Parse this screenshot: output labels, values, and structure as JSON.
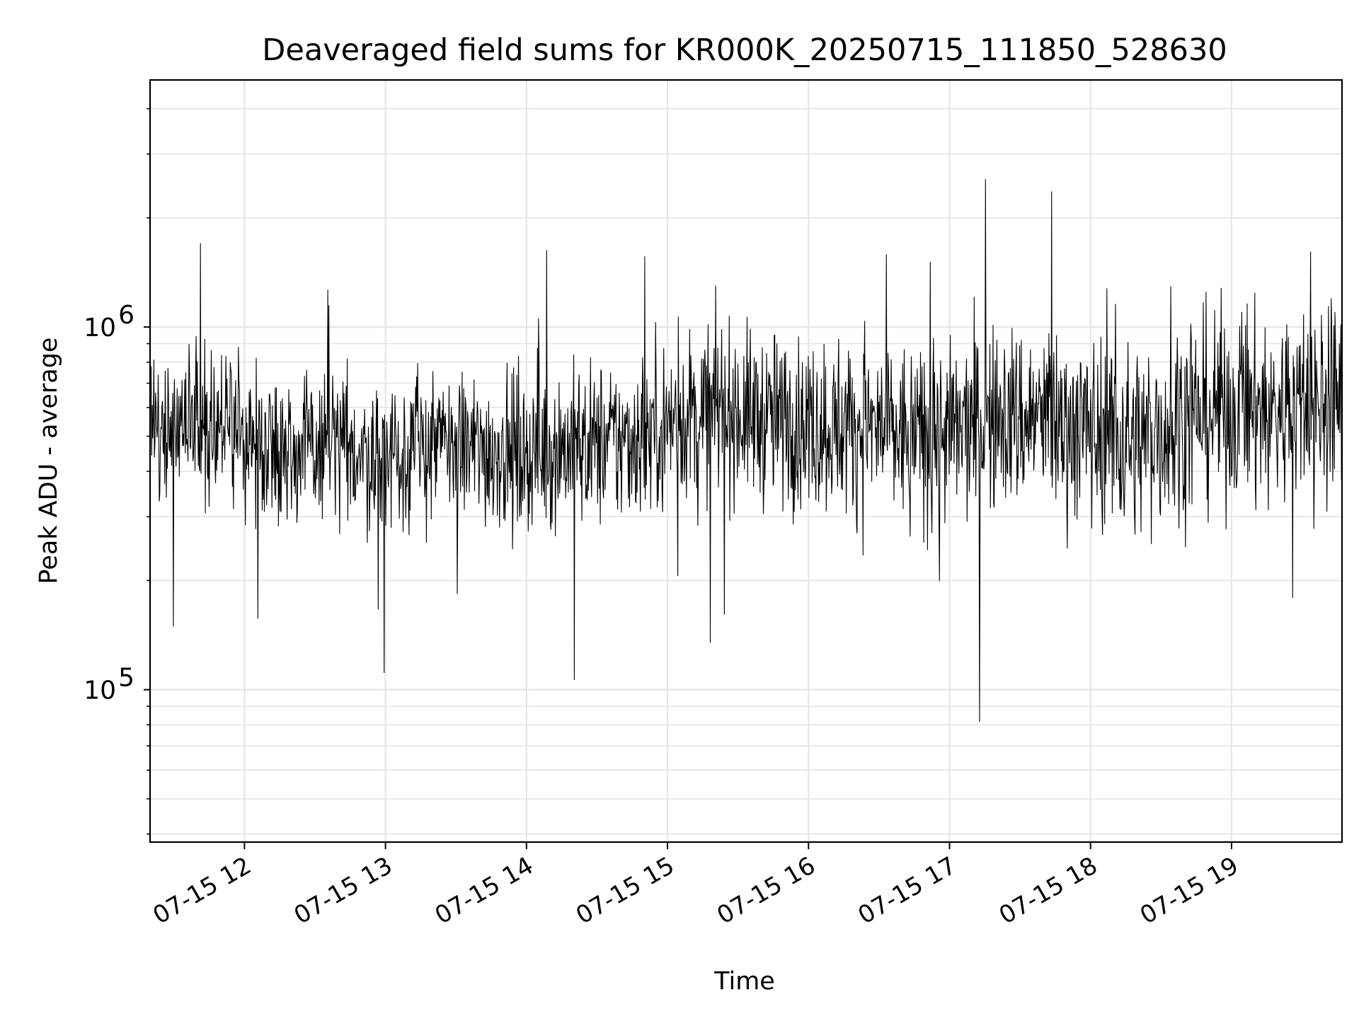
{
  "chart_data": {
    "type": "line",
    "title": "Deaveraged field sums for KR000K_20250715_111850_528630",
    "xlabel": "Time",
    "ylabel": "Peak ADU - average",
    "yscale": "log",
    "ylim": [
      38000,
      4800000
    ],
    "xlim": [
      "07-15 11:19:50",
      "07-15 19:47:00"
    ],
    "grid": true,
    "line_color": "#000000",
    "x_ticks": [
      {
        "t": "07-15 12:00",
        "label": "07-15 12"
      },
      {
        "t": "07-15 13:00",
        "label": "07-15 13"
      },
      {
        "t": "07-15 14:00",
        "label": "07-15 14"
      },
      {
        "t": "07-15 15:00",
        "label": "07-15 15"
      },
      {
        "t": "07-15 16:00",
        "label": "07-15 16"
      },
      {
        "t": "07-15 17:00",
        "label": "07-15 17"
      },
      {
        "t": "07-15 18:00",
        "label": "07-15 18"
      },
      {
        "t": "07-15 19:00",
        "label": "07-15 19"
      }
    ],
    "y_ticks": [
      {
        "value": 100000,
        "base": "10",
        "exp": "5"
      },
      {
        "value": 1000000,
        "base": "10",
        "exp": "6"
      }
    ],
    "x": [
      "07-15 11:20",
      "07-15 11:40",
      "07-15 12:00",
      "07-15 12:20",
      "07-15 12:40",
      "07-15 13:00",
      "07-15 13:20",
      "07-15 13:40",
      "07-15 14:00",
      "07-15 14:20",
      "07-15 14:40",
      "07-15 15:00",
      "07-15 15:20",
      "07-15 15:40",
      "07-15 16:00",
      "07-15 16:20",
      "07-15 16:40",
      "07-15 17:00",
      "07-15 17:20",
      "07-15 17:40",
      "07-15 18:00",
      "07-15 18:20",
      "07-15 18:40",
      "07-15 19:00",
      "07-15 19:20",
      "07-15 19:40"
    ],
    "series": [
      {
        "values": [
          520000,
          560000,
          500000,
          470000,
          460000,
          450000,
          470000,
          460000,
          450000,
          470000,
          480000,
          540000,
          600000,
          560000,
          540000,
          530000,
          500000,
          500000,
          560000,
          560000,
          520000,
          480000,
          570000,
          600000,
          580000,
          620000
        ]
      }
    ]
  }
}
